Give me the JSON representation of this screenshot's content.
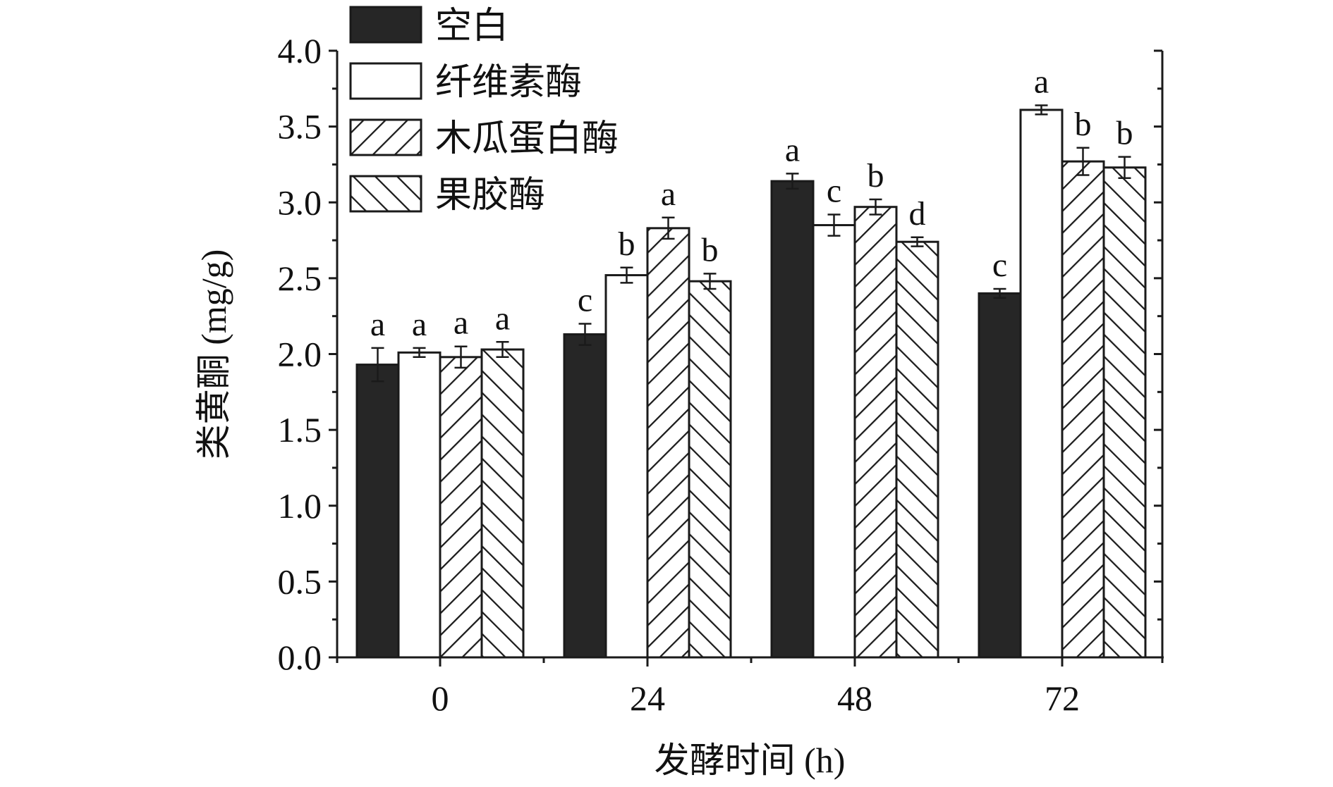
{
  "chart_data": {
    "type": "bar",
    "xlabel": "发酵时间 (h)",
    "ylabel": "类黄酮 (mg/g)",
    "categories": [
      "0",
      "24",
      "48",
      "72"
    ],
    "ylim": [
      0,
      4.0
    ],
    "yticks": [
      "0.0",
      "0.5",
      "1.0",
      "1.5",
      "2.0",
      "2.5",
      "3.0",
      "3.5",
      "4.0"
    ],
    "legend_position": "top-left",
    "grid": false,
    "series": [
      {
        "name": "空白",
        "fill": "solid",
        "values": [
          1.93,
          2.13,
          3.14,
          2.4
        ],
        "errors": [
          0.11,
          0.07,
          0.05,
          0.03
        ],
        "letters": [
          "a",
          "c",
          "a",
          "c"
        ]
      },
      {
        "name": "纤维素酶",
        "fill": "white",
        "values": [
          2.01,
          2.52,
          2.85,
          3.61
        ],
        "errors": [
          0.03,
          0.05,
          0.07,
          0.03
        ],
        "letters": [
          "a",
          "b",
          "c",
          "a"
        ]
      },
      {
        "name": "木瓜蛋白酶",
        "fill": "hatch-forward",
        "values": [
          1.98,
          2.83,
          2.97,
          3.27
        ],
        "errors": [
          0.07,
          0.07,
          0.05,
          0.09
        ],
        "letters": [
          "a",
          "a",
          "b",
          "b"
        ]
      },
      {
        "name": "果胶酶",
        "fill": "hatch-back",
        "values": [
          2.03,
          2.48,
          2.74,
          3.23
        ],
        "errors": [
          0.05,
          0.05,
          0.03,
          0.07
        ],
        "letters": [
          "a",
          "b",
          "d",
          "b"
        ]
      }
    ],
    "colors": {
      "bar_dark": "#262626",
      "stroke": "#1a1a1a",
      "background": "#ffffff"
    }
  }
}
